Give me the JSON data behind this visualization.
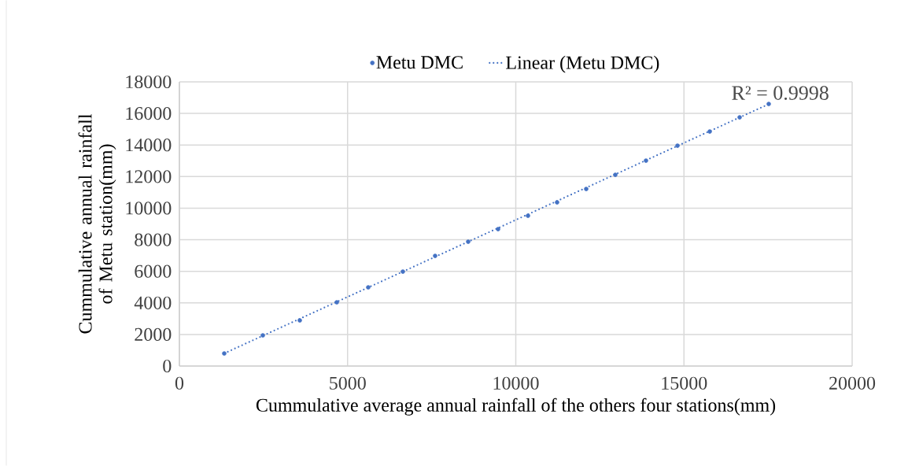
{
  "chart_data": {
    "type": "scatter",
    "xlabel": "Cummulative average annual rainfall of the others four stations(mm)",
    "ylabel": "Cummulative annual rainfall of Metu station(mm)",
    "x": [
      1333,
      2480,
      3579,
      4678,
      5614,
      6643,
      7602,
      8585,
      9474,
      10363,
      11228,
      12094,
      12959,
      13871,
      14807,
      15766,
      16655,
      17520
    ],
    "series": [
      {
        "name": "Metu DMC",
        "color": "#4472c4",
        "marker": "circle",
        "values": [
          798,
          1944,
          2891,
          4038,
          4985,
          5982,
          6979,
          7876,
          8674,
          9521,
          10369,
          11216,
          12114,
          13011,
          13958,
          14855,
          15753,
          16600
        ]
      },
      {
        "name": "Linear (Metu DMC)",
        "type": "line",
        "color": "#4472c4",
        "line_style": "dotted",
        "marker": "none",
        "x": [
          1333,
          17520
        ],
        "values": [
          800,
          16590
        ]
      }
    ],
    "annotations": [
      "R² = 0.9998"
    ],
    "xlim": [
      0,
      20000
    ],
    "ylim": [
      0,
      18000
    ],
    "xticks": [
      0,
      5000,
      10000,
      15000,
      20000
    ],
    "yticks": [
      0,
      2000,
      4000,
      6000,
      8000,
      10000,
      12000,
      14000,
      16000,
      18000
    ],
    "grid": true,
    "legend": "top"
  }
}
